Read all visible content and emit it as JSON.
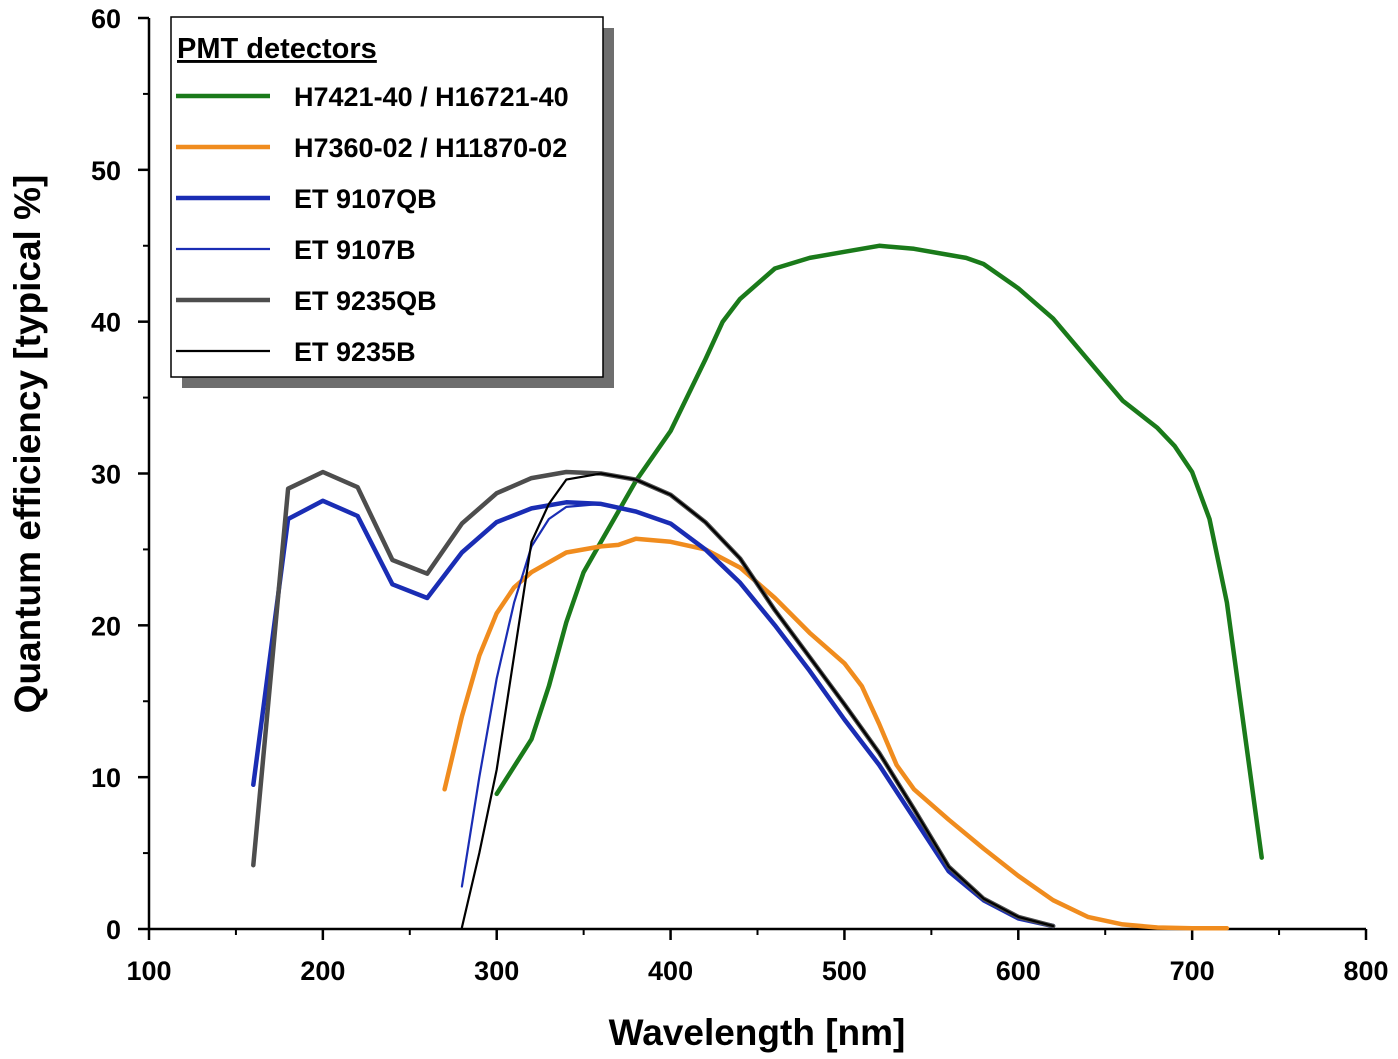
{
  "chart_data": {
    "type": "line",
    "title": "",
    "xlabel": "Wavelength [nm]",
    "ylabel": "Quantum efficiency [typical %]",
    "xlim": [
      100,
      800
    ],
    "ylim": [
      0,
      60
    ],
    "xticks": [
      100,
      200,
      300,
      400,
      500,
      600,
      700,
      800
    ],
    "yticks": [
      0,
      10,
      20,
      30,
      40,
      50,
      60
    ],
    "grid": false,
    "legend_title": "PMT detectors",
    "legend_position": "top-left",
    "series": [
      {
        "name": "H7421-40 / H16721-40",
        "color": "#1a7a1a",
        "width": "thick",
        "x": [
          300,
          320,
          330,
          340,
          350,
          360,
          380,
          400,
          420,
          430,
          440,
          460,
          480,
          500,
          520,
          540,
          560,
          570,
          580,
          600,
          620,
          640,
          660,
          680,
          690,
          700,
          710,
          720,
          740
        ],
        "y": [
          8.9,
          12.5,
          16,
          20.2,
          23.5,
          25.5,
          29.5,
          32.8,
          37.5,
          40,
          41.5,
          43.5,
          44.2,
          44.6,
          45,
          44.8,
          44.4,
          44.2,
          43.8,
          42.2,
          40.2,
          37.5,
          34.8,
          33,
          31.8,
          30.1,
          27,
          21.5,
          4.7
        ]
      },
      {
        "name": "H7360-02 / H11870-02",
        "color": "#f08c1e",
        "width": "thick",
        "x": [
          270,
          280,
          290,
          300,
          310,
          320,
          340,
          360,
          370,
          380,
          400,
          420,
          440,
          460,
          480,
          500,
          510,
          520,
          530,
          540,
          560,
          580,
          600,
          620,
          640,
          660,
          680,
          700,
          720
        ],
        "y": [
          9.2,
          14,
          18,
          20.8,
          22.5,
          23.5,
          24.8,
          25.2,
          25.3,
          25.7,
          25.5,
          25,
          23.8,
          21.8,
          19.5,
          17.5,
          16,
          13.5,
          10.8,
          9.2,
          7.2,
          5.3,
          3.5,
          1.9,
          0.8,
          0.3,
          0.1,
          0.05,
          0.05
        ]
      },
      {
        "name": "ET 9107QB",
        "color": "#1a2db4",
        "width": "thick",
        "x": [
          160,
          180,
          200,
          220,
          240,
          260,
          280,
          300,
          320,
          340,
          360,
          380,
          400,
          420,
          440,
          460,
          480,
          500,
          520,
          540,
          560,
          580,
          600,
          620
        ],
        "y": [
          9.5,
          27,
          28.2,
          27.2,
          22.7,
          21.8,
          24.8,
          26.8,
          27.7,
          28.1,
          28,
          27.5,
          26.7,
          25,
          22.8,
          20,
          17,
          13.8,
          10.8,
          7.3,
          3.8,
          1.9,
          0.7,
          0.2
        ]
      },
      {
        "name": "ET 9107B",
        "color": "#1a2db4",
        "width": "thin",
        "x": [
          280,
          290,
          300,
          310,
          320,
          330,
          340,
          360,
          380,
          400,
          420,
          440,
          460,
          480,
          500,
          520,
          540,
          560,
          580,
          600,
          620
        ],
        "y": [
          2.8,
          10,
          16.5,
          21.5,
          25.2,
          27,
          27.8,
          28,
          27.5,
          26.7,
          25,
          22.8,
          20,
          17,
          13.8,
          10.8,
          7.3,
          3.8,
          1.9,
          0.7,
          0.2
        ]
      },
      {
        "name": "ET 9235QB",
        "color": "#4d4d4d",
        "width": "thick",
        "x": [
          160,
          180,
          200,
          220,
          240,
          260,
          280,
          300,
          320,
          340,
          360,
          380,
          400,
          420,
          440,
          460,
          480,
          500,
          520,
          540,
          560,
          580,
          600,
          620
        ],
        "y": [
          4.2,
          29,
          30.1,
          29.1,
          24.3,
          23.4,
          26.7,
          28.7,
          29.7,
          30.1,
          30,
          29.6,
          28.6,
          26.8,
          24.4,
          21,
          17.9,
          14.8,
          11.6,
          7.9,
          4.1,
          2.0,
          0.8,
          0.2
        ]
      },
      {
        "name": "ET 9235B",
        "color": "#000000",
        "width": "thin",
        "x": [
          280,
          290,
          300,
          310,
          320,
          330,
          340,
          360,
          380,
          400,
          420,
          440,
          460,
          480,
          500,
          520,
          540,
          560,
          580,
          600,
          620
        ],
        "y": [
          0.1,
          5,
          10.5,
          18,
          25.5,
          28,
          29.6,
          30,
          29.6,
          28.6,
          26.8,
          24.4,
          21,
          17.9,
          14.8,
          11.6,
          7.9,
          4.1,
          2.0,
          0.8,
          0.2
        ]
      }
    ]
  }
}
